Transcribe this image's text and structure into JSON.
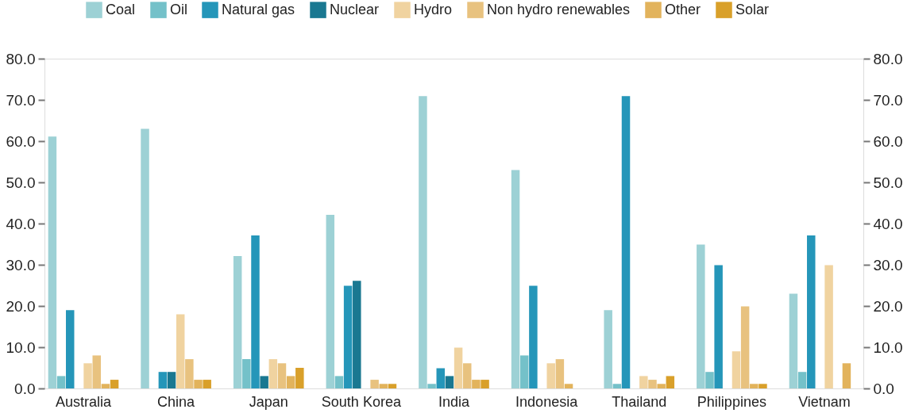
{
  "chart_data": {
    "type": "bar",
    "categories": [
      "Australia",
      "China",
      "Japan",
      "South Korea",
      "India",
      "Indonesia",
      "Thailand",
      "Philippines",
      "Vietnam"
    ],
    "series": [
      {
        "name": "Coal",
        "color": "#9dd1d5",
        "values": [
          61.1,
          63.0,
          32.1,
          42.1,
          70.9,
          53.0,
          19.0,
          34.9,
          23.0
        ]
      },
      {
        "name": "Oil",
        "color": "#74c1c9",
        "values": [
          3.0,
          0,
          7.1,
          3.0,
          1.1,
          8.0,
          1.1,
          4.0,
          4.0
        ]
      },
      {
        "name": "Natural gas",
        "color": "#2596b9",
        "values": [
          19.0,
          4.0,
          37.1,
          24.9,
          4.9,
          24.9,
          70.9,
          29.9,
          37.1
        ]
      },
      {
        "name": "Nuclear",
        "color": "#1a7891",
        "values": [
          0,
          4.0,
          3.0,
          26.1,
          3.0,
          0,
          0,
          0,
          0
        ]
      },
      {
        "name": "Hydro",
        "color": "#f0d3a0",
        "values": [
          6.1,
          18.0,
          7.1,
          0,
          9.9,
          6.1,
          3.0,
          9.0,
          29.9
        ]
      },
      {
        "name": "Non hydro renewables",
        "color": "#e8c27f",
        "values": [
          8.0,
          7.1,
          6.1,
          2.1,
          6.1,
          7.1,
          2.1,
          19.9,
          0
        ]
      },
      {
        "name": "Other",
        "color": "#e2b35c",
        "values": [
          1.1,
          2.1,
          3.0,
          1.1,
          2.1,
          1.1,
          1.1,
          1.1,
          6.1
        ]
      },
      {
        "name": "Solar",
        "color": "#d9a02a",
        "values": [
          2.1,
          2.1,
          5.0,
          1.1,
          2.1,
          0,
          3.0,
          1.1,
          0
        ]
      }
    ],
    "ylim": [
      0,
      80
    ],
    "yticks": [
      {
        "value": 0,
        "label": "0.0"
      },
      {
        "value": 10,
        "label": "10.0"
      },
      {
        "value": 20,
        "label": "20.0"
      },
      {
        "value": 30,
        "label": "30.0"
      },
      {
        "value": 40,
        "label": "40.0"
      },
      {
        "value": 50,
        "label": "50.0"
      },
      {
        "value": 60,
        "label": "60.0"
      },
      {
        "value": 70,
        "label": "70.0"
      },
      {
        "value": 80,
        "label": "80.0"
      }
    ],
    "y2lim": [
      0,
      80
    ],
    "y2ticks": [
      {
        "value": 0,
        "label": "0.0"
      },
      {
        "value": 10,
        "label": "10.0"
      },
      {
        "value": 20,
        "label": "20.0"
      },
      {
        "value": 30,
        "label": "30.0"
      },
      {
        "value": 40,
        "label": "40.0"
      },
      {
        "value": 50,
        "label": "50.0"
      },
      {
        "value": 60,
        "label": "60.0"
      },
      {
        "value": 70,
        "label": "70.0"
      },
      {
        "value": 80,
        "label": "80.0"
      }
    ],
    "legend": "top right",
    "grid": false
  }
}
